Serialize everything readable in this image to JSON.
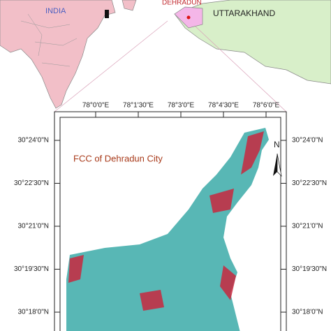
{
  "inset": {
    "country": "INDIA",
    "city": "DEHRADUN",
    "state": "UTTARAKHAND"
  },
  "map": {
    "title": "FCC of Dehradun City",
    "north": "N",
    "longitudes": [
      "78°0'0\"E",
      "78°1'30\"E",
      "78°3'0\"E",
      "78°4'30\"E",
      "78°6'0\"E"
    ],
    "latitudes": [
      "30°24'0\"N",
      "30°22'30\"N",
      "30°21'0\"N",
      "30°19'30\"N",
      "30°18'0\"N"
    ]
  }
}
